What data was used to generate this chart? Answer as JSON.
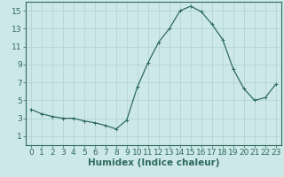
{
  "x": [
    0,
    1,
    2,
    3,
    4,
    5,
    6,
    7,
    8,
    9,
    10,
    11,
    12,
    13,
    14,
    15,
    16,
    17,
    18,
    19,
    20,
    21,
    22,
    23
  ],
  "y": [
    4.0,
    3.5,
    3.2,
    3.0,
    3.0,
    2.7,
    2.5,
    2.2,
    1.8,
    2.8,
    6.5,
    9.2,
    11.5,
    13.0,
    15.0,
    15.5,
    14.9,
    13.5,
    11.8,
    8.5,
    6.3,
    5.0,
    5.3,
    6.8
  ],
  "line_color": "#2e6b5e",
  "marker": "+",
  "marker_color": "#2e6b5e",
  "bg_color": "#cde8e8",
  "grid_color": "#afd0d0",
  "axis_color": "#2e6b5e",
  "tick_color": "#2e6b5e",
  "xlabel": "Humidex (Indice chaleur)",
  "xlim": [
    -0.5,
    23.5
  ],
  "ylim": [
    0,
    16
  ],
  "yticks": [
    1,
    3,
    5,
    7,
    9,
    11,
    13,
    15
  ],
  "xticks": [
    0,
    1,
    2,
    3,
    4,
    5,
    6,
    7,
    8,
    9,
    10,
    11,
    12,
    13,
    14,
    15,
    16,
    17,
    18,
    19,
    20,
    21,
    22,
    23
  ],
  "font_size": 6.5,
  "xlabel_font_size": 7.5,
  "linewidth": 0.9,
  "markersize": 3.5,
  "markeredgewidth": 0.7
}
